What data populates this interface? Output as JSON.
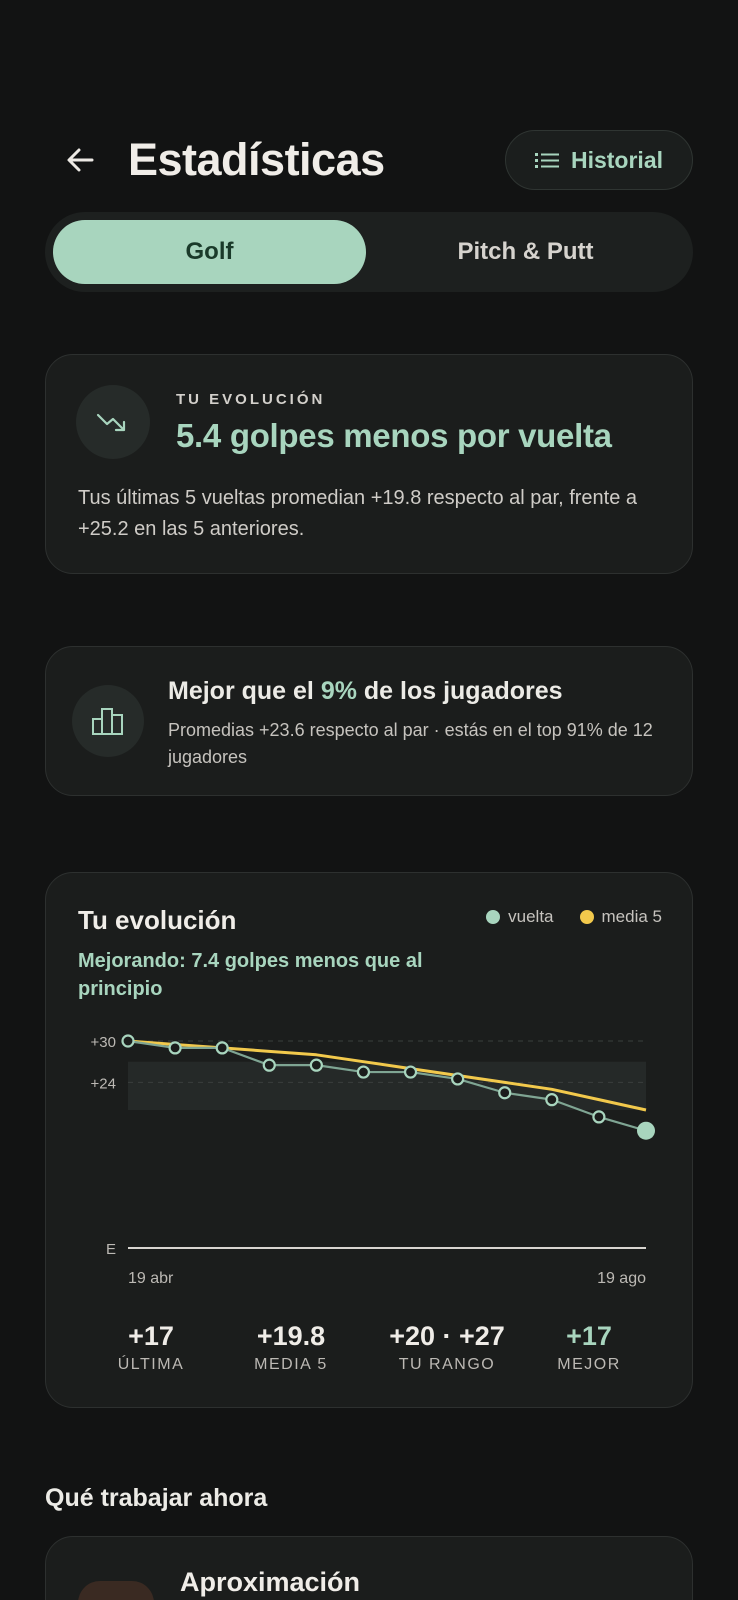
{
  "header": {
    "title": "Estadísticas",
    "history_label": "Historial"
  },
  "tabs": [
    {
      "label": "Golf",
      "active": true
    },
    {
      "label": "Pitch & Putt",
      "active": false
    }
  ],
  "evolution_card": {
    "kicker": "TU EVOLUCIÓN",
    "headline": "5.4 golpes menos por vuelta",
    "description": "Tus últimas 5 vueltas promedian +19.8 respecto al par, frente a +25.2 en las 5 anteriores.",
    "icon": "trending-down-icon"
  },
  "percentile_card": {
    "title_prefix": "Mejor que el ",
    "title_highlight": "9%",
    "title_suffix": " de los jugadores",
    "description": "Promedias +23.6 respecto al par · estás en el top 91% de 12 jugadores",
    "icon": "bar-chart-icon"
  },
  "chart_card": {
    "title": "Tu evolución",
    "subtitle": "Mejorando: 7.4 golpes menos que al principio",
    "legend": [
      {
        "label": "vuelta",
        "color": "#a8d5be"
      },
      {
        "label": "media 5",
        "color": "#f2c94c"
      }
    ],
    "stats": [
      {
        "value": "+17",
        "label": "ÚLTIMA"
      },
      {
        "value": "+19.8",
        "label": "MEDIA 5"
      },
      {
        "value": "+20 · +27",
        "label": "TU RANGO"
      },
      {
        "value": "+17",
        "label": "MEJOR"
      }
    ]
  },
  "chart_data": {
    "type": "line",
    "title": "Tu evolución",
    "x_labels": [
      "19 abr",
      "19 ago"
    ],
    "y_tick_labels": [
      "+30",
      "+24",
      "E"
    ],
    "ylim": [
      0,
      30
    ],
    "range_band": [
      20,
      27
    ],
    "series": [
      {
        "name": "vuelta",
        "color": "#a8d5be",
        "values": [
          30,
          29,
          29,
          26.5,
          26.5,
          25.5,
          25.5,
          24.5,
          22.5,
          21.5,
          19,
          17
        ]
      },
      {
        "name": "media 5",
        "color": "#f2c94c",
        "values": [
          30,
          29.5,
          29,
          28.5,
          28,
          27,
          26,
          25,
          24,
          23,
          21.5,
          20
        ]
      }
    ]
  },
  "next_section": {
    "title": "Qué trabajar ahora",
    "first_item": "Aproximación"
  }
}
